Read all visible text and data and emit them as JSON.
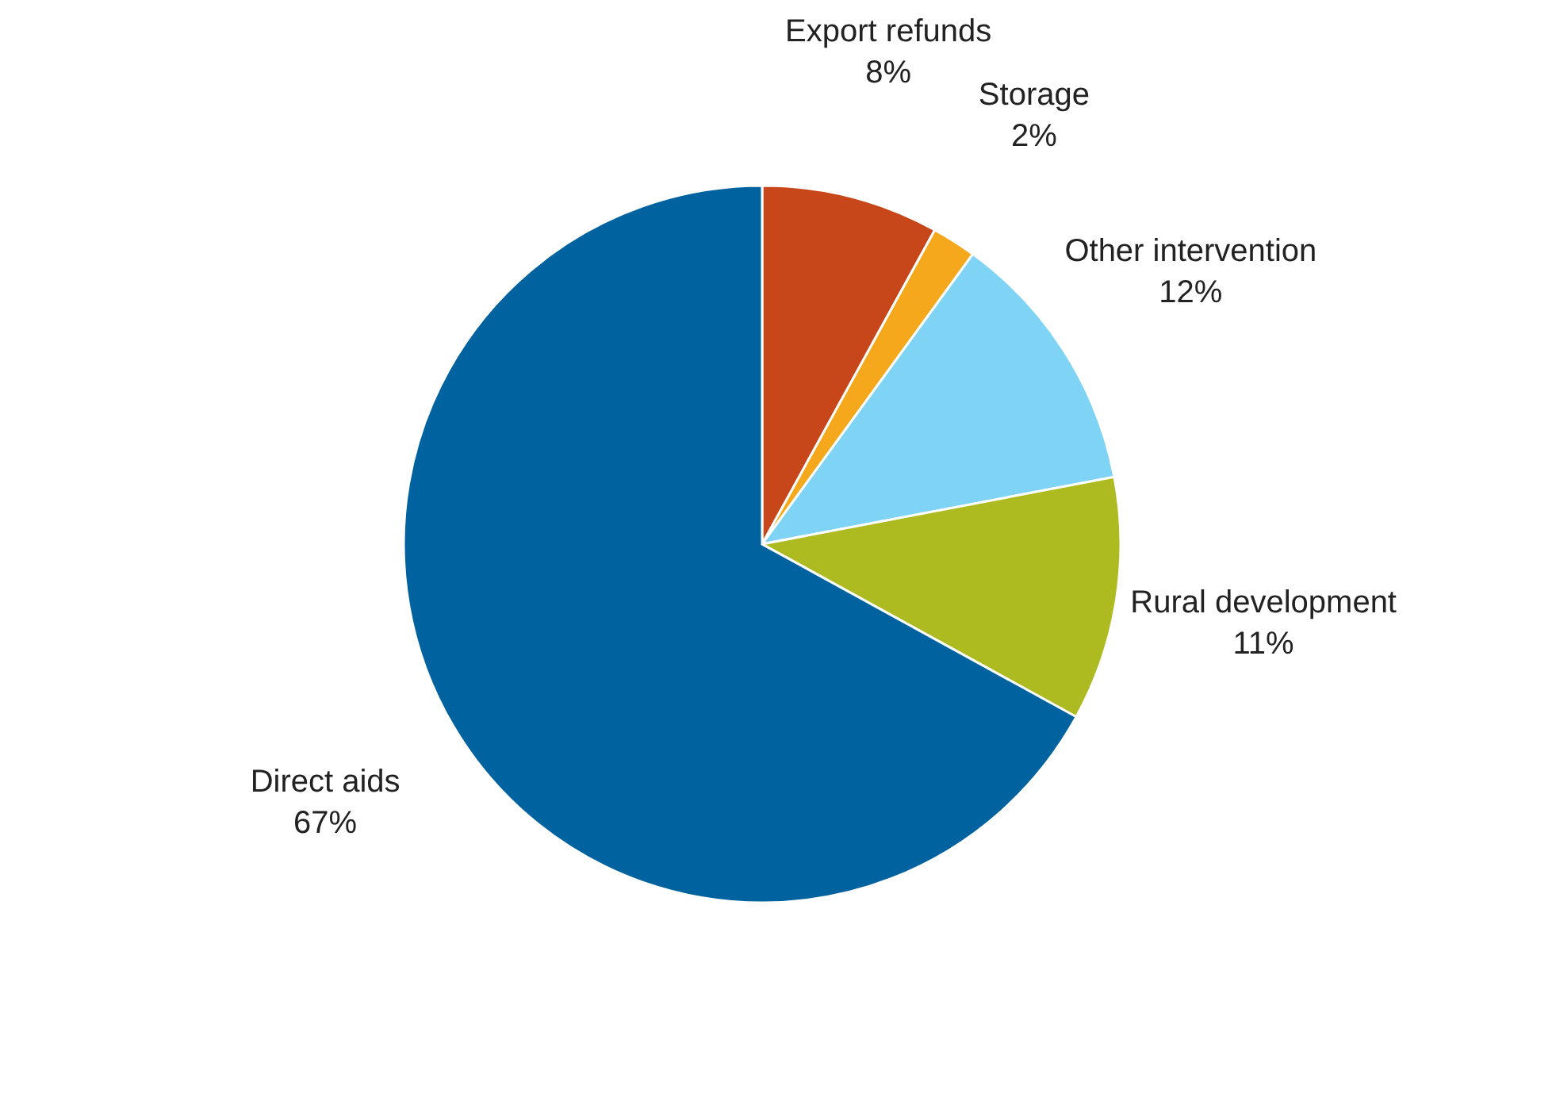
{
  "chart_data": {
    "type": "pie",
    "categories": [
      "Export refunds",
      "Storage",
      "Other intervention",
      "Rural development",
      "Direct aids"
    ],
    "values": [
      8,
      2,
      12,
      11,
      67
    ],
    "value_labels": [
      "8%",
      "2%",
      "12%",
      "11%",
      "67%"
    ],
    "colors": [
      "#c7471a",
      "#f6a81d",
      "#7fd3f5",
      "#adbb21",
      "#0063a0"
    ],
    "legend": false
  }
}
